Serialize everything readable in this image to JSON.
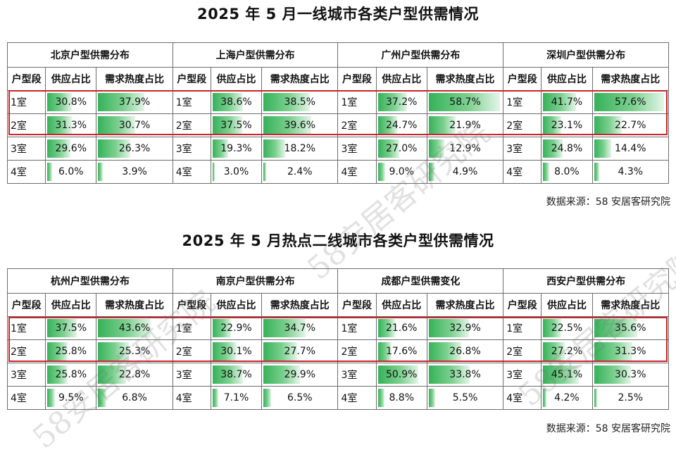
{
  "chart_data": [
    {
      "type": "table",
      "title": "2025 年 5 月一线城市各类户型供需情况",
      "source": "数据来源：58 安居客研究院",
      "columns": [
        "户型段",
        "供应占比",
        "需求热度占比"
      ],
      "categories": [
        "1室",
        "2室",
        "3室",
        "4室"
      ],
      "cities": [
        {
          "name": "北京户型供需分布",
          "supply": [
            30.8,
            31.3,
            29.6,
            6.0
          ],
          "demand": [
            37.9,
            30.7,
            26.3,
            3.9
          ]
        },
        {
          "name": "上海户型供需分布",
          "supply": [
            38.6,
            37.5,
            19.3,
            3.0
          ],
          "demand": [
            38.5,
            39.6,
            18.2,
            2.4
          ]
        },
        {
          "name": "广州户型供需分布",
          "supply": [
            37.2,
            24.7,
            27.0,
            9.0
          ],
          "demand": [
            58.7,
            21.9,
            12.9,
            4.9
          ]
        },
        {
          "name": "深圳户型供需分布",
          "supply": [
            41.7,
            23.1,
            24.8,
            8.0
          ],
          "demand": [
            57.6,
            22.7,
            14.4,
            4.3
          ]
        }
      ],
      "highlight_rows": [
        "1室",
        "2室"
      ],
      "bar_color": "#36b25a",
      "highlight_color": "#c8252d"
    },
    {
      "type": "table",
      "title": "2025 年 5 月热点二线城市各类户型供需情况",
      "source": "数据来源：58 安居客研究院",
      "columns": [
        "户型段",
        "供应占比",
        "需求热度占比"
      ],
      "categories": [
        "1室",
        "2室",
        "3室",
        "4室"
      ],
      "cities": [
        {
          "name": "杭州户型供需分布",
          "supply": [
            37.5,
            25.8,
            25.8,
            9.5
          ],
          "demand": [
            43.6,
            25.3,
            22.8,
            6.8
          ]
        },
        {
          "name": "南京户型供需分布",
          "supply": [
            22.9,
            30.1,
            38.7,
            7.1
          ],
          "demand": [
            34.7,
            27.7,
            29.9,
            6.5
          ]
        },
        {
          "name": "成都户型供需变化",
          "supply": [
            21.6,
            17.6,
            50.9,
            8.8
          ],
          "demand": [
            32.9,
            26.8,
            33.8,
            5.5
          ]
        },
        {
          "name": "西安户型供需分布",
          "supply": [
            22.5,
            27.2,
            45.1,
            4.2
          ],
          "demand": [
            35.6,
            31.3,
            30.3,
            2.5
          ]
        }
      ],
      "highlight_rows": [
        "1室",
        "2室"
      ],
      "bar_color": "#36b25a",
      "highlight_color": "#c8252d"
    }
  ],
  "watermark": "58安居客研究院"
}
